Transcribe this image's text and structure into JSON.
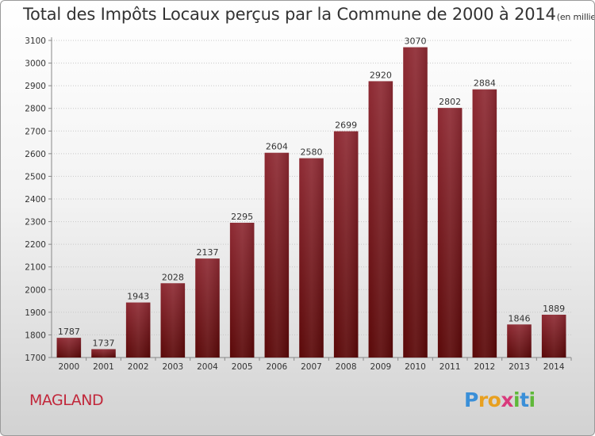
{
  "title": "Total des Impôts Locaux perçus par la Commune de 2000 à 2014",
  "unit": "(en milliers d'€)",
  "commune": "MAGLAND",
  "brand": {
    "letters": [
      {
        "char": "P",
        "color": "#3a8fd8"
      },
      {
        "char": "r",
        "color": "#e8a020"
      },
      {
        "char": "o",
        "color": "#e8a020"
      },
      {
        "char": "x",
        "color": "#d93a7c"
      },
      {
        "char": "i",
        "color": "#5fb83a"
      },
      {
        "char": "t",
        "color": "#3a8fd8"
      },
      {
        "char": "i",
        "color": "#5fb83a"
      }
    ]
  },
  "chart_data": {
    "type": "bar",
    "title": "Total des Impôts Locaux perçus par la Commune de 2000 à 2014",
    "ylabel": "(en milliers d'€)",
    "categories": [
      "2000",
      "2001",
      "2002",
      "2003",
      "2004",
      "2005",
      "2006",
      "2007",
      "2008",
      "2009",
      "2010",
      "2011",
      "2012",
      "2013",
      "2014"
    ],
    "values": [
      1787,
      1737,
      1943,
      2028,
      2137,
      2295,
      2604,
      2580,
      2699,
      2920,
      3070,
      2802,
      2884,
      1846,
      1889
    ],
    "ylim": [
      1700,
      3100
    ],
    "yticks": [
      1700,
      1800,
      1900,
      2000,
      2100,
      2200,
      2300,
      2400,
      2500,
      2600,
      2700,
      2800,
      2900,
      3000,
      3100
    ],
    "grid": true,
    "bar_color": "#7a1a22"
  }
}
